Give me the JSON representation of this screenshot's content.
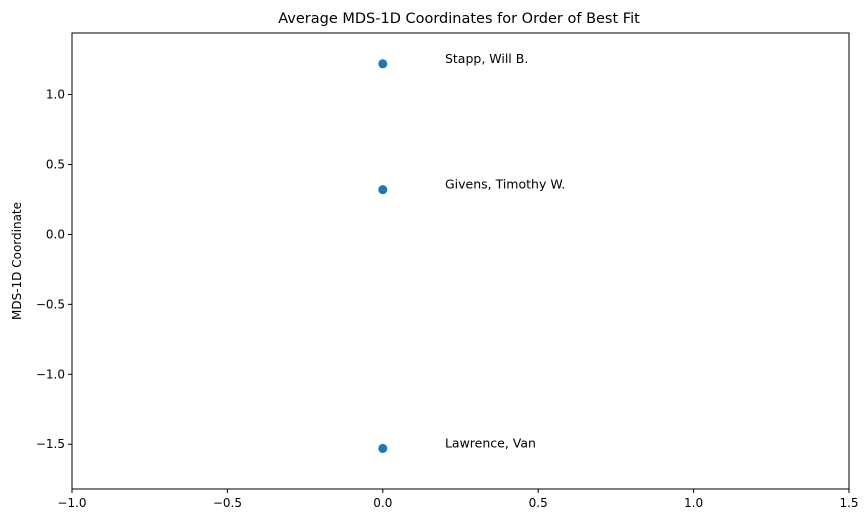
{
  "chart_data": {
    "type": "scatter",
    "title": "Average MDS-1D Coordinates for Order of Best Fit",
    "xlabel": "",
    "ylabel": "MDS-1D Coordinate",
    "xlim": [
      -1.0,
      1.5
    ],
    "ylim": [
      -1.82,
      1.44
    ],
    "xticks": [
      -1.0,
      -0.5,
      0.0,
      0.5,
      1.0,
      1.5
    ],
    "xtick_labels": [
      "−1.0",
      "−0.5",
      "0.0",
      "0.5",
      "1.0",
      "1.5"
    ],
    "yticks": [
      1.0,
      0.5,
      0.0,
      -0.5,
      -1.0,
      -1.5
    ],
    "ytick_labels": [
      "1.0",
      "0.5",
      "0.0",
      "−0.5",
      "−1.0",
      "−1.5"
    ],
    "grid": false,
    "marker_color": "#1f77b4",
    "points": [
      {
        "label": "Stapp, Will B.",
        "x": 0.0,
        "y": 1.22
      },
      {
        "label": "Givens, Timothy W.",
        "x": 0.0,
        "y": 0.32
      },
      {
        "label": "Lawrence, Van",
        "x": 0.0,
        "y": -1.53
      }
    ],
    "annotation_offset_x": 0.2
  }
}
